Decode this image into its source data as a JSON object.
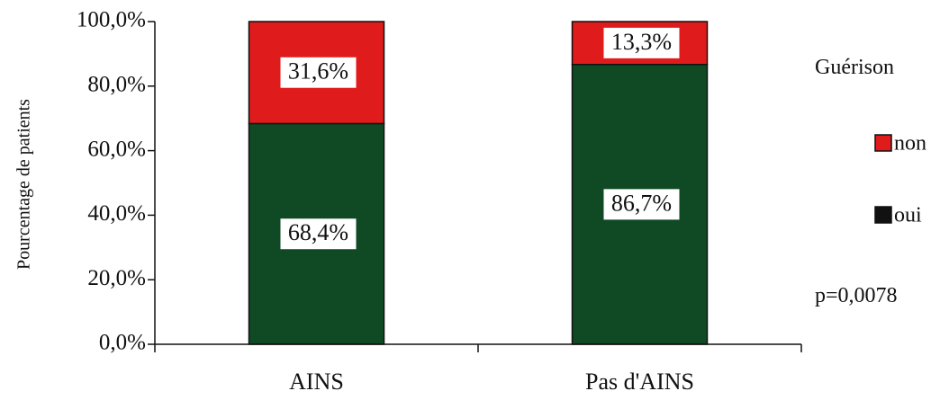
{
  "chart_data": {
    "type": "bar",
    "stacked": true,
    "percent": true,
    "categories": [
      "AINS",
      "Pas d'AINS"
    ],
    "series": [
      {
        "name": "oui",
        "values": [
          68.4,
          86.7
        ],
        "labels": [
          "68,4%",
          "86,7%"
        ],
        "color": "#0f4a25"
      },
      {
        "name": "non",
        "values": [
          31.6,
          13.3
        ],
        "labels": [
          "31,6%",
          "13,3%"
        ],
        "color": "#e01b1b"
      }
    ],
    "ylim": [
      0,
      100
    ],
    "yticks": [
      0,
      20,
      40,
      60,
      80,
      100
    ],
    "ytick_labels": [
      "0,0%",
      "20,0%",
      "40,0%",
      "60,0%",
      "80,0%",
      "100,0%"
    ],
    "ylabel": "Pourcentage de patients",
    "xlabel": "",
    "legend": {
      "title": "Guérison",
      "position": "right",
      "order": [
        "non",
        "oui"
      ]
    },
    "annotation": "p=0,0078",
    "grid": false
  }
}
